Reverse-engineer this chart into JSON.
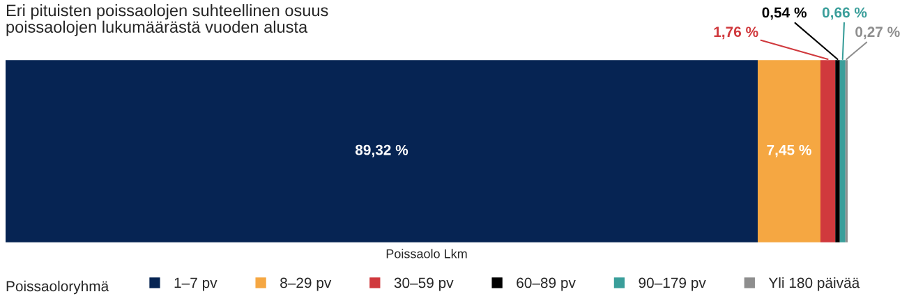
{
  "chart_data": {
    "type": "bar",
    "orientation": "horizontal",
    "stacked": true,
    "title": "Eri pituisten poissaolojen suhteellinen osuus\npoissaolojen lukumäärästä vuoden alusta",
    "xlabel": "Poissaolo Lkm",
    "categories": [
      null
    ],
    "legend": "bottom",
    "legend_title": "Poissaoloryhmä",
    "series": [
      {
        "name": "1–7 pv",
        "color": "#062453",
        "values": [
          89.32
        ],
        "value_labels": [
          "89,32 %"
        ]
      },
      {
        "name": "8–29 pv",
        "color": "#f5a742",
        "values": [
          7.45
        ],
        "value_labels": [
          "7,45 %"
        ]
      },
      {
        "name": "30–59 pv",
        "color": "#d0393d",
        "values": [
          1.76
        ],
        "value_labels": [
          "1,76 %"
        ]
      },
      {
        "name": "60–89 pv",
        "color": "#000000",
        "values": [
          0.54
        ],
        "value_labels": [
          "0,54 %"
        ]
      },
      {
        "name": "90–179 pv",
        "color": "#3a9e9a",
        "values": [
          0.66
        ],
        "value_labels": [
          "0,66 %"
        ]
      },
      {
        "name": "Yli 180 päivää",
        "color": "#8e8e8e",
        "values": [
          0.27
        ],
        "value_labels": [
          "0,27 %"
        ]
      }
    ]
  }
}
